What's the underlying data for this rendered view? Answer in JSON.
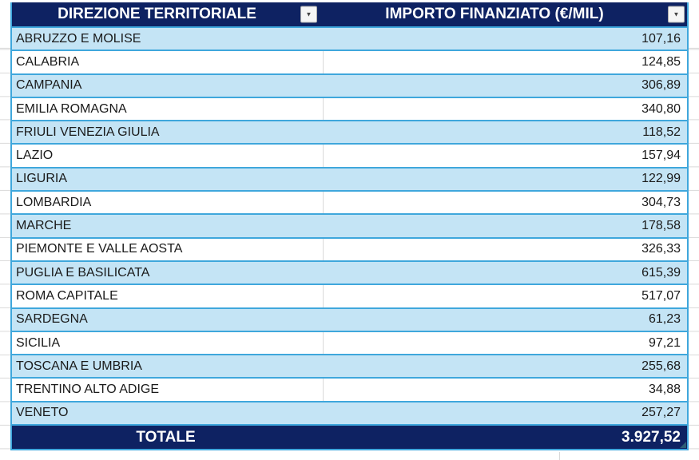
{
  "colors": {
    "header_bg": "#0E2262",
    "band_bg": "#C4E4F5",
    "row_border": "#3FA7DC",
    "grid_line": "#D9D9D9",
    "text": "#1A1A1A",
    "header_text": "#FFFFFF"
  },
  "icons": {
    "filter_dropdown": "▼"
  },
  "table": {
    "columns": [
      {
        "id": "direzione",
        "label": "DIREZIONE TERRITORIALE"
      },
      {
        "id": "importo",
        "label": "IMPORTO FINANZIATO (€/MIL)"
      }
    ],
    "rows": [
      {
        "direzione": "ABRUZZO E MOLISE",
        "importo": "107,16"
      },
      {
        "direzione": "CALABRIA",
        "importo": "124,85"
      },
      {
        "direzione": "CAMPANIA",
        "importo": "306,89"
      },
      {
        "direzione": "EMILIA ROMAGNA",
        "importo": "340,80"
      },
      {
        "direzione": "FRIULI VENEZIA GIULIA",
        "importo": "118,52"
      },
      {
        "direzione": "LAZIO",
        "importo": "157,94"
      },
      {
        "direzione": "LIGURIA",
        "importo": "122,99"
      },
      {
        "direzione": "LOMBARDIA",
        "importo": "304,73"
      },
      {
        "direzione": "MARCHE",
        "importo": "178,58"
      },
      {
        "direzione": "PIEMONTE E VALLE AOSTA",
        "importo": "326,33"
      },
      {
        "direzione": "PUGLIA E BASILICATA",
        "importo": "615,39"
      },
      {
        "direzione": "ROMA CAPITALE",
        "importo": "517,07"
      },
      {
        "direzione": "SARDEGNA",
        "importo": "61,23"
      },
      {
        "direzione": "SICILIA",
        "importo": "97,21"
      },
      {
        "direzione": "TOSCANA E UMBRIA",
        "importo": "255,68"
      },
      {
        "direzione": "TRENTINO ALTO ADIGE",
        "importo": "34,88"
      },
      {
        "direzione": "VENETO",
        "importo": "257,27"
      }
    ],
    "total": {
      "label": "TOTALE",
      "importo": "3.927,52"
    }
  }
}
